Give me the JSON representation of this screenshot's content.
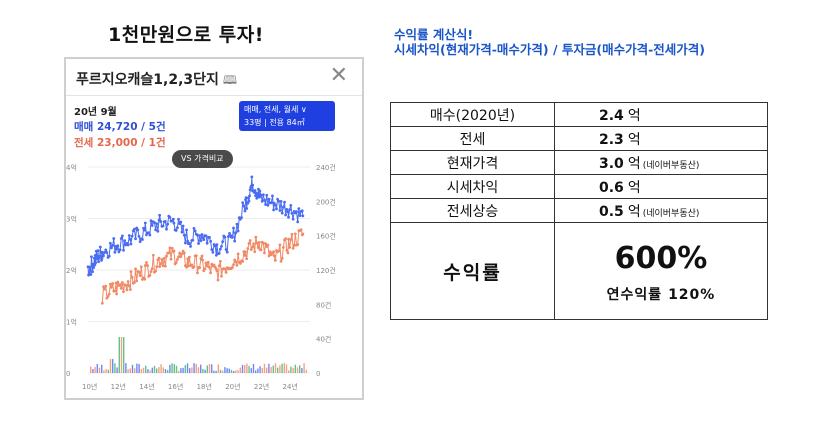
{
  "main_title": "1천만원으로 투자!",
  "formula": {
    "title": "수익률 계산식!",
    "expression": "시세차익(현재가격-매수가격) / 투자금(매수가격-전세가격)"
  },
  "card": {
    "title": "푸르지오캐슬1,2,3단지",
    "book_icon": "book-icon",
    "close_icon": "close-icon",
    "date": "20년 9월",
    "trade": "매매 24,720 / 5건",
    "jeonse": "전세 23,000 / 1건",
    "filter_line1": "매매, 전세, 월세 ∨",
    "filter_line2": "33평 | 전용 84㎡",
    "vs_label": "VS 가격비교"
  },
  "chart_data": {
    "type": "line",
    "x_labels": [
      "10년",
      "12년",
      "14년",
      "16년",
      "18년",
      "20년",
      "22년",
      "24년"
    ],
    "y_left_labels": [
      "0",
      "1억",
      "2억",
      "3억",
      "4억"
    ],
    "y_right_labels": [
      "0",
      "40건",
      "80건",
      "120건",
      "160건",
      "200건",
      "240건"
    ],
    "series": [
      {
        "name": "매매",
        "color": "#4a6cf0",
        "values": [
          [
            2010,
            2.0
          ],
          [
            2010.5,
            2.2
          ],
          [
            2011,
            2.35
          ],
          [
            2012,
            2.5
          ],
          [
            2013,
            2.6
          ],
          [
            2014,
            2.75
          ],
          [
            2015,
            2.9
          ],
          [
            2016,
            2.95
          ],
          [
            2017,
            2.6
          ],
          [
            2018,
            2.7
          ],
          [
            2019,
            2.45
          ],
          [
            2020,
            2.55
          ],
          [
            2021,
            3.3
          ],
          [
            2021.5,
            3.7
          ],
          [
            2022,
            3.4
          ],
          [
            2023,
            3.3
          ],
          [
            2024,
            3.2
          ],
          [
            2025,
            3.05
          ]
        ]
      },
      {
        "name": "전세",
        "color": "#f08a66",
        "values": [
          [
            2011,
            1.5
          ],
          [
            2012,
            1.65
          ],
          [
            2013,
            1.8
          ],
          [
            2014,
            2.0
          ],
          [
            2015,
            2.2
          ],
          [
            2016,
            2.3
          ],
          [
            2017,
            2.15
          ],
          [
            2018,
            2.1
          ],
          [
            2019,
            1.95
          ],
          [
            2020,
            2.15
          ],
          [
            2021,
            2.35
          ],
          [
            2022,
            2.55
          ],
          [
            2023,
            2.2
          ],
          [
            2024,
            2.5
          ],
          [
            2025,
            2.7
          ]
        ]
      }
    ],
    "volume_colors": [
      "#4a6cf0",
      "#f08a66",
      "#3fb36a"
    ]
  },
  "table": {
    "rows": [
      {
        "label": "매수(2020년)",
        "value": "2.4",
        "unit": "억",
        "note": ""
      },
      {
        "label": "전세",
        "value": "2.3",
        "unit": "억",
        "note": ""
      },
      {
        "label": "현재가격",
        "value": "3.0",
        "unit": "억",
        "note": "(네이버부동산)"
      },
      {
        "label": "시세차익",
        "value": "0.6",
        "unit": "억",
        "note": ""
      },
      {
        "label": "전세상승",
        "value": "0.5",
        "unit": "억",
        "note": "(네이버부동산)"
      }
    ],
    "result_label": "수익률",
    "result_value": "600%",
    "annual": "연수익률 120%"
  }
}
